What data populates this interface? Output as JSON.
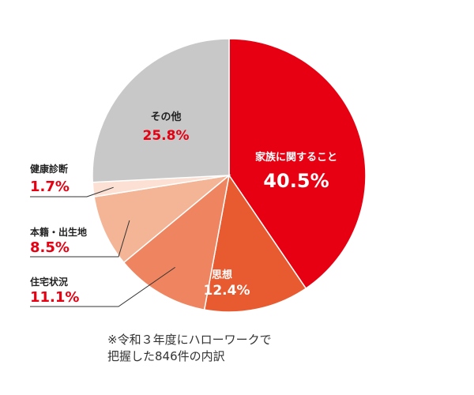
{
  "chart_data": {
    "type": "pie",
    "slices": [
      {
        "label": "家族に関すること",
        "value": 40.5,
        "value_text": "40.5%",
        "color": "#e60012"
      },
      {
        "label": "思想",
        "value": 12.4,
        "value_text": "12.4%",
        "color": "#e85a30"
      },
      {
        "label": "住宅状況",
        "value": 11.1,
        "value_text": "11.1%",
        "color": "#ee8560"
      },
      {
        "label": "本籍・出生地",
        "value": 8.5,
        "value_text": "8.5%",
        "color": "#f4b597"
      },
      {
        "label": "健康診断",
        "value": 1.7,
        "value_text": "1.7%",
        "color": "#fbe0d3"
      },
      {
        "label": "その他",
        "value": 25.8,
        "value_text": "25.8%",
        "color": "#c8c8c8"
      }
    ]
  },
  "note": {
    "line1": "※令和３年度にハローワークで",
    "line2": "把握した846件の内訳"
  },
  "colors": {
    "label_red": "#e60012",
    "label_dark": "#222222",
    "leader_line": "#333333"
  }
}
